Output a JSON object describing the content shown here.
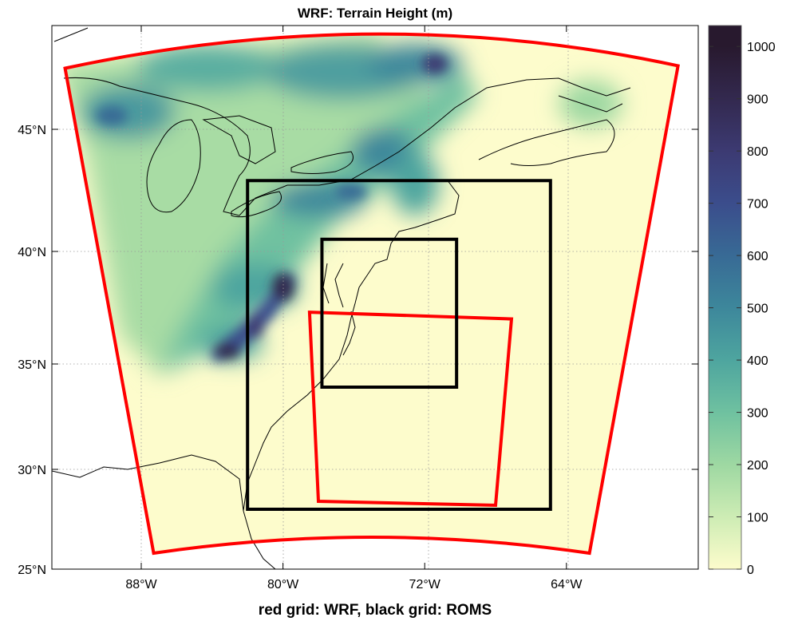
{
  "title": "WRF: Terrain Height (m)",
  "xlabel": "red grid: WRF, black grid: ROMS",
  "chart_data": {
    "type": "heatmap",
    "title": "WRF: Terrain Height (m)",
    "xlabel": "red grid: WRF, black grid: ROMS",
    "x_ticks": [
      {
        "value": -88,
        "label": "88°W"
      },
      {
        "value": -80,
        "label": "80°W"
      },
      {
        "value": -72,
        "label": "72°W"
      },
      {
        "value": -64,
        "label": "64°W"
      }
    ],
    "y_ticks": [
      {
        "value": 25,
        "label": "25°N"
      },
      {
        "value": 30,
        "label": "30°N"
      },
      {
        "value": 35,
        "label": "35°N"
      },
      {
        "value": 40,
        "label": "40°N"
      },
      {
        "value": 45,
        "label": "45°N"
      }
    ],
    "grid": true,
    "colorbar": {
      "range": [
        0,
        1040
      ],
      "ticks": [
        "0",
        "100",
        "200",
        "300",
        "400",
        "500",
        "600",
        "700",
        "800",
        "900",
        "1000"
      ],
      "colors": [
        "#fdfccc",
        "#cdecb4",
        "#9ed8a2",
        "#6fc1a0",
        "#4ea59f",
        "#3d879b",
        "#386a95",
        "#3b4d8c",
        "#3c3a72",
        "#33294f",
        "#28192e"
      ]
    },
    "domains": [
      {
        "name": "WRF outer",
        "color": "#ff0000",
        "corners": [
          [
            -92.3,
            47.5
          ],
          [
            -74.8,
            48.9
          ],
          [
            -57.7,
            47.6
          ],
          [
            -62.7,
            25.8
          ],
          [
            -75.0,
            26.6
          ],
          [
            -87.3,
            25.8
          ]
        ]
      },
      {
        "name": "WRF inner",
        "color": "#ff0000",
        "corners": [
          [
            -78.5,
            37.3
          ],
          [
            -67.1,
            37.0
          ],
          [
            -68.0,
            28.2
          ],
          [
            -78.0,
            28.4
          ]
        ]
      },
      {
        "name": "ROMS outer",
        "color": "#000000",
        "corners": [
          [
            -82.0,
            42.9
          ],
          [
            -64.9,
            42.9
          ],
          [
            -64.9,
            28.0
          ],
          [
            -82.0,
            28.0
          ]
        ]
      },
      {
        "name": "ROMS inner",
        "color": "#000000",
        "corners": [
          [
            -77.8,
            40.5
          ],
          [
            -70.2,
            40.5
          ],
          [
            -70.2,
            33.9
          ],
          [
            -77.8,
            33.9
          ]
        ]
      }
    ]
  }
}
